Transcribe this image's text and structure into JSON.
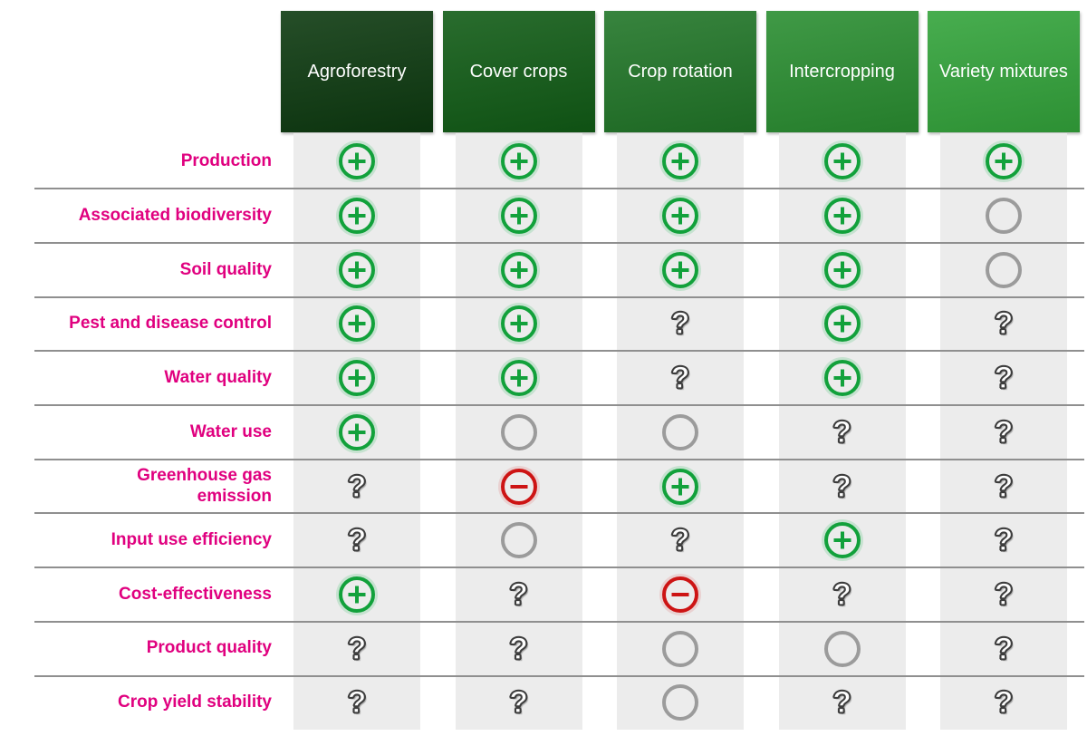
{
  "colors": {
    "background": "#ffffff",
    "row_label": "#e0007f",
    "band": "#ececec",
    "separator": "#8f8f8f",
    "header_text": "#ffffff",
    "plus": "#12a13b",
    "minus": "#cd1414",
    "neutral": "#9b9b9b",
    "question_outline": "#3d3d3d"
  },
  "chart_data": {
    "type": "table",
    "legend_position": "none",
    "columns": [
      {
        "label": "Agroforestry",
        "color": "#0d3a10"
      },
      {
        "label": "Cover crops",
        "color": "#115c16"
      },
      {
        "label": "Crop rotation",
        "color": "#217628"
      },
      {
        "label": "Intercropping",
        "color": "#2a8e31"
      },
      {
        "label": "Variety mixtures",
        "color": "#33a43b"
      }
    ],
    "rows": [
      {
        "label": "Production",
        "cells": [
          "plus",
          "plus",
          "plus",
          "plus",
          "plus"
        ]
      },
      {
        "label": "Associated biodiversity",
        "cells": [
          "plus",
          "plus",
          "plus",
          "plus",
          "neutral"
        ]
      },
      {
        "label": "Soil quality",
        "cells": [
          "plus",
          "plus",
          "plus",
          "plus",
          "neutral"
        ]
      },
      {
        "label": "Pest and disease control",
        "cells": [
          "plus",
          "plus",
          "question",
          "plus",
          "question"
        ]
      },
      {
        "label": "Water quality",
        "cells": [
          "plus",
          "plus",
          "question",
          "plus",
          "question"
        ]
      },
      {
        "label": "Water use",
        "cells": [
          "plus",
          "neutral",
          "neutral",
          "question",
          "question"
        ]
      },
      {
        "label": "Greenhouse gas emission",
        "lines": [
          "Greenhouse gas",
          "emission"
        ],
        "cells": [
          "question",
          "minus",
          "plus",
          "question",
          "question"
        ]
      },
      {
        "label": "Input use efficiency",
        "cells": [
          "question",
          "neutral",
          "question",
          "plus",
          "question"
        ]
      },
      {
        "label": "Cost-effectiveness",
        "cells": [
          "plus",
          "question",
          "minus",
          "question",
          "question"
        ]
      },
      {
        "label": "Product quality",
        "cells": [
          "question",
          "question",
          "neutral",
          "neutral",
          "question"
        ]
      },
      {
        "label": "Crop yield stability",
        "cells": [
          "question",
          "question",
          "neutral",
          "question",
          "question"
        ]
      }
    ],
    "symbol_glyphs": {
      "plus": "+",
      "minus": "−",
      "neutral": "○",
      "question": "?"
    }
  }
}
